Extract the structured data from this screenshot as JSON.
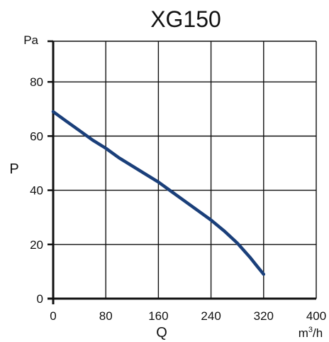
{
  "chart_data": {
    "type": "line",
    "title": "XG150",
    "xlabel": "Q",
    "ylabel": "P",
    "x_unit": "m³/h",
    "y_unit": "Pa",
    "xlim": [
      0,
      400
    ],
    "ylim": [
      0,
      95
    ],
    "x_ticks": [
      "0",
      "80",
      "160",
      "240",
      "320",
      "400"
    ],
    "y_ticks": [
      "0",
      "20",
      "40",
      "60",
      "80"
    ],
    "grid": true,
    "series": [
      {
        "color": "#1a3f7a",
        "x": [
          0,
          20,
          40,
          60,
          80,
          100,
          120,
          140,
          160,
          180,
          200,
          220,
          240,
          260,
          280,
          300,
          310,
          320
        ],
        "y": [
          69,
          65.5,
          62,
          58.5,
          55.5,
          52,
          49,
          46,
          43,
          39.5,
          36,
          32.5,
          29,
          25,
          20.5,
          15,
          12,
          9
        ]
      }
    ]
  }
}
